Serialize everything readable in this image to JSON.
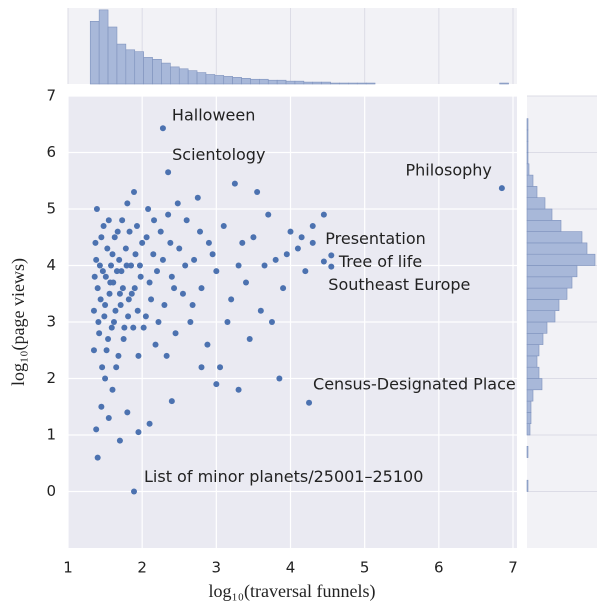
{
  "chart_data": [
    {
      "type": "scatter",
      "color": "#4c72b0",
      "xlabel": "log₁₀(traversal funnels)",
      "ylabel": "log₁₀(page views)",
      "xlim": [
        1,
        7
      ],
      "ylim": [
        -1,
        7
      ],
      "xticks": [
        1,
        2,
        3,
        4,
        5,
        6,
        7
      ],
      "yticks": [
        0,
        1,
        2,
        3,
        4,
        5,
        6,
        7
      ],
      "grid": true,
      "x": [
        1.35,
        1.38,
        1.4,
        1.42,
        1.45,
        1.47,
        1.5,
        1.52,
        1.55,
        1.57,
        1.6,
        1.62,
        1.65,
        1.67,
        1.7,
        1.72,
        1.75,
        1.78,
        1.8,
        1.82,
        1.85,
        1.88,
        1.9,
        1.93,
        1.95,
        1.98,
        2.0,
        2.05,
        2.08,
        2.1,
        2.15,
        2.18,
        2.2,
        2.25,
        2.3,
        2.35,
        2.4,
        2.45,
        2.5,
        2.55,
        2.6,
        2.65,
        2.7,
        2.75,
        2.8,
        2.9,
        3.0,
        3.05,
        3.1,
        3.2,
        3.25,
        3.3,
        3.4,
        3.5,
        3.6,
        3.7,
        3.8,
        3.9,
        4.0,
        4.1,
        4.2,
        4.3,
        4.45,
        3.85,
        3.3,
        3.0,
        2.8,
        2.4,
        2.1,
        1.95,
        1.8,
        1.6,
        1.45,
        1.38,
        1.4,
        1.5,
        1.35,
        1.36,
        1.37,
        1.39,
        1.41,
        1.43,
        1.44,
        1.46,
        1.48,
        1.49,
        1.51,
        1.53,
        1.54,
        1.56,
        1.58,
        1.59,
        1.61,
        1.63,
        1.64,
        1.66,
        1.68,
        1.69,
        1.71,
        1.73,
        1.74,
        1.76,
        1.79,
        1.81,
        1.83,
        1.86,
        1.89,
        1.91,
        1.94,
        1.97,
        2.02,
        2.06,
        2.12,
        2.16,
        2.22,
        2.28,
        2.33,
        2.38,
        2.43,
        2.48,
        2.58,
        2.68,
        2.78,
        2.88,
        2.95,
        3.15,
        3.35,
        3.45,
        3.55,
        3.65,
        3.75,
        3.95,
        4.15,
        4.3,
        1.55,
        1.7
      ],
      "values": [
        3.2,
        4.1,
        3.6,
        2.8,
        4.5,
        3.9,
        3.3,
        2.5,
        4.8,
        3.7,
        4.2,
        3.0,
        2.2,
        4.6,
        3.5,
        3.9,
        2.7,
        4.3,
        5.1,
        3.4,
        4.0,
        2.9,
        3.6,
        4.7,
        2.4,
        3.8,
        4.4,
        3.1,
        5.0,
        3.7,
        4.2,
        2.6,
        3.9,
        4.6,
        3.3,
        4.9,
        3.8,
        2.8,
        4.3,
        3.5,
        4.8,
        3.0,
        4.1,
        5.2,
        3.6,
        4.4,
        3.9,
        2.2,
        4.7,
        3.4,
        5.45,
        4.0,
        3.7,
        4.5,
        3.2,
        4.9,
        4.1,
        3.6,
        4.6,
        4.3,
        3.9,
        4.7,
        4.9,
        2.0,
        1.8,
        1.9,
        2.2,
        1.6,
        1.2,
        1.05,
        1.4,
        1.8,
        1.5,
        1.1,
        0.6,
        2.0,
        2.5,
        3.8,
        4.4,
        5.0,
        3.0,
        4.0,
        3.4,
        2.2,
        4.7,
        3.1,
        3.8,
        4.3,
        2.7,
        3.5,
        4.0,
        2.9,
        3.7,
        4.5,
        3.2,
        3.9,
        2.4,
        4.1,
        3.3,
        4.8,
        3.6,
        2.9,
        4.0,
        3.1,
        4.6,
        3.5,
        5.3,
        4.2,
        3.2,
        4.0,
        2.9,
        4.5,
        3.4,
        4.8,
        3.0,
        4.1,
        2.4,
        4.4,
        3.6,
        5.1,
        4.0,
        3.3,
        4.6,
        2.6,
        4.2,
        3.0,
        4.4,
        2.7,
        5.3,
        4.0,
        3.0,
        4.2,
        4.5,
        4.4,
        1.3,
        0.9
      ],
      "annotations": [
        {
          "text": "Halloween",
          "x": 2.28,
          "y": 6.43
        },
        {
          "text": "Scientology",
          "x": 2.35,
          "y": 5.65
        },
        {
          "text": "Philosophy",
          "x": 6.85,
          "y": 5.37
        },
        {
          "text": "Presentation",
          "x": 4.55,
          "y": 4.18
        },
        {
          "text": "Tree of life",
          "x": 4.45,
          "y": 4.07
        },
        {
          "text": "Southeast Europe",
          "x": 4.55,
          "y": 3.98
        },
        {
          "text": "Census-Designated Place",
          "x": 4.25,
          "y": 1.57
        },
        {
          "text": "List of minor planets/25001–25100",
          "x": 1.89,
          "y": 0.0
        }
      ]
    },
    {
      "type": "histogram",
      "orientation": "vertical",
      "color": "#a8b8d9",
      "ylim": [
        0,
        80
      ],
      "bins": [
        1.3,
        1.42,
        1.54,
        1.66,
        1.78,
        1.9,
        2.02,
        2.14,
        2.26,
        2.38,
        2.5,
        2.62,
        2.74,
        2.86,
        2.98,
        3.1,
        3.22,
        3.34,
        3.46,
        3.58,
        3.7,
        3.82,
        3.94,
        4.06,
        4.18,
        4.3,
        4.42,
        4.54,
        4.66,
        4.78,
        4.9,
        5.02,
        5.14,
        5.26,
        5.38,
        5.5,
        5.62,
        5.74,
        5.86,
        5.98,
        6.1,
        6.22,
        6.34,
        6.46,
        6.58,
        6.7,
        6.82,
        6.94
      ],
      "values": [
        66,
        78,
        60,
        42,
        36,
        34,
        28,
        26,
        22,
        18,
        16,
        14,
        12,
        10,
        9,
        8,
        7,
        6,
        5,
        5,
        4,
        4,
        3,
        3,
        2,
        2,
        2,
        1,
        1,
        1,
        1,
        1,
        0,
        0,
        0,
        0,
        0,
        0,
        0,
        0,
        0,
        0,
        0,
        0,
        0,
        0,
        1
      ]
    },
    {
      "type": "histogram",
      "orientation": "horizontal",
      "color": "#a8b8d9",
      "xlim": [
        0,
        70
      ],
      "bins": [
        0,
        0.2,
        0.4,
        0.6,
        0.8,
        1.0,
        1.2,
        1.4,
        1.6,
        1.8,
        2.0,
        2.2,
        2.4,
        2.6,
        2.8,
        3.0,
        3.2,
        3.4,
        3.6,
        3.8,
        4.0,
        4.2,
        4.4,
        4.6,
        4.8,
        5.0,
        5.2,
        5.4,
        5.6,
        5.8,
        6.0,
        6.2,
        6.4,
        6.6
      ],
      "values": [
        1,
        0,
        0,
        1,
        0,
        3,
        4,
        4,
        6,
        15,
        12,
        10,
        12,
        16,
        20,
        28,
        32,
        40,
        45,
        50,
        68,
        60,
        55,
        34,
        25,
        18,
        10,
        6,
        2,
        1,
        1,
        1,
        1
      ]
    }
  ]
}
